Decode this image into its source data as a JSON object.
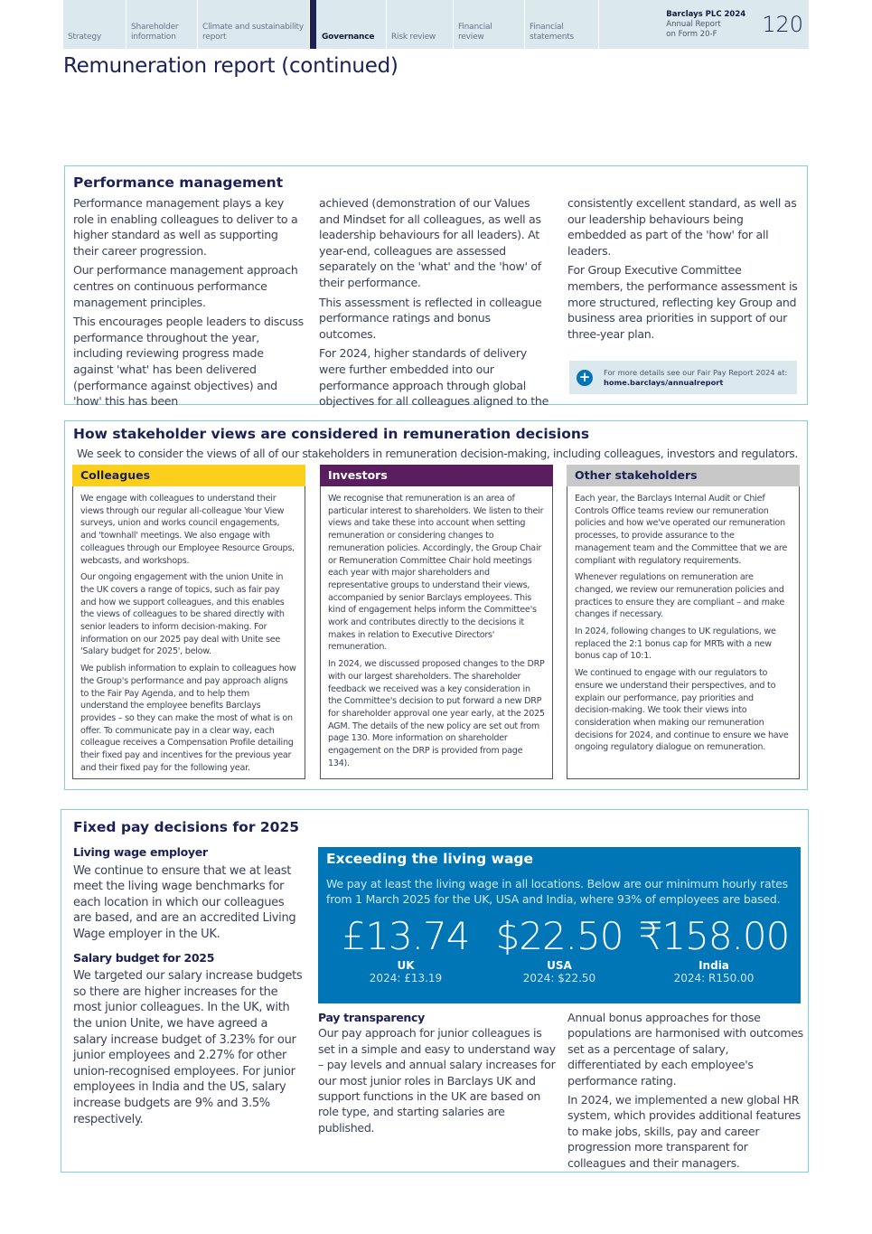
{
  "nav": {
    "tabs": [
      "Strategy",
      "Shareholder information",
      "Climate and sustainability report",
      "Governance",
      "Risk review",
      "Financial review",
      "Financial statements"
    ],
    "active": "Governance",
    "brand_line1": "Barclays PLC 2024",
    "brand_line2": "Annual Report",
    "brand_line3": "on Form 20-F",
    "page_number": "120"
  },
  "title": "Remuneration report (continued)",
  "performance": {
    "heading": "Performance management",
    "col1": [
      "Performance management plays a key role in enabling colleagues to deliver to a higher standard as well as supporting their career progression.",
      "Our performance management approach centres on continuous performance management principles.",
      "This encourages people leaders to discuss performance throughout the year, including reviewing progress made against 'what' has been delivered (performance against objectives) and 'how' this has been"
    ],
    "col2": [
      "achieved (demonstration of our Values and Mindset for all colleagues, as well as leadership behaviours for all leaders). At year-end, colleagues are assessed separately on the 'what' and the 'how' of their performance.",
      "This assessment is reflected in colleague performance ratings and bonus outcomes.",
      "For 2024, higher standards of delivery were further embedded into our performance approach through global objectives for all colleagues aligned to the"
    ],
    "col3": [
      "consistently excellent standard, as well as our leadership behaviours being embedded as part of the 'how' for all leaders.",
      "For Group Executive Committee members, the performance assessment is more structured, reflecting key Group and business area priorities in support of our three-year plan."
    ],
    "callout_text": "For more details see our Fair Pay Report 2024 at:",
    "callout_link": "home.barclays/annualreport"
  },
  "stakeholders": {
    "heading": "How stakeholder views are considered in remuneration decisions",
    "intro": "We seek to consider the views of all of our stakeholders in remuneration decision-making, including colleagues, investors and regulators.",
    "columns": [
      {
        "title": "Colleagues",
        "color": "#fccf1d",
        "paragraphs": [
          "We engage with colleagues to understand their views through our regular all-colleague Your View surveys, union and works council engagements, and 'townhall' meetings. We also engage with colleagues through our Employee Resource Groups, webcasts, and workshops.",
          "Our ongoing engagement with the union Unite in the UK covers a range of topics, such as fair pay and how we support colleagues, and this enables the views of colleagues to be shared directly with senior leaders to inform decision-making. For information on our 2025 pay deal with Unite see 'Salary budget for 2025', below.",
          "We publish information to explain to colleagues how the Group's performance and pay approach aligns to the Fair Pay Agenda, and to help them understand the employee benefits Barclays provides – so they can make the most of what is on offer. To communicate pay in a clear way, each colleague receives a Compensation Profile detailing their fixed pay and incentives for the previous year and their fixed pay for the following year."
        ]
      },
      {
        "title": "Investors",
        "color": "#5a1e5f",
        "paragraphs": [
          "We recognise that remuneration is an area of particular interest to shareholders. We listen to their views and take these into account when setting remuneration or considering changes to remuneration policies. Accordingly, the Group Chair or Remuneration Committee Chair hold meetings each year with major shareholders and representative groups to understand their views, accompanied by senior Barclays employees. This kind of engagement helps inform the Committee's work and contributes directly to the decisions it makes in relation to Executive Directors' remuneration.",
          "In 2024, we discussed proposed changes to the DRP with our largest shareholders. The shareholder feedback we received was a key consideration in the Committee's decision to put forward a new DRP for shareholder approval one year early, at the 2025 AGM. The details of the new policy are set out from page 130. More information on shareholder engagement on the DRP is provided from page 134)."
        ]
      },
      {
        "title": "Other stakeholders",
        "color": "#c8c8c8",
        "paragraphs": [
          "Each year, the Barclays Internal Audit or Chief Controls Office teams review our remuneration policies and how we've operated our remuneration processes, to provide assurance to the management team and the Committee that we are compliant with regulatory requirements.",
          "Whenever regulations on remuneration are changed, we review our remuneration policies and practices to ensure they are compliant – and make changes if necessary.",
          "In 2024, following changes to UK regulations, we replaced the 2:1 bonus cap for MRTs with a new bonus cap of 10:1.",
          "We continued to engage with our regulators to ensure we understand their perspectives, and to explain our performance, pay priorities and decision-making. We took their views into consideration when making our remuneration decisions for 2024, and continue to ensure we have ongoing regulatory dialogue on remuneration."
        ]
      }
    ]
  },
  "fixed_pay": {
    "heading": "Fixed pay decisions for 2025",
    "living_wage_heading": "Living wage employer",
    "living_wage_text": "We continue to ensure that we at least meet the living wage benchmarks for each location in which our colleagues are based, and are an accredited Living Wage employer in the UK.",
    "salary_heading": "Salary budget for 2025",
    "salary_text": "We targeted our salary increase budgets so there are higher increases for the most junior colleagues. In the UK, with the union Unite, we have agreed a salary increase budget of 3.23% for our junior employees and 2.27% for other union-recognised employees. For junior employees in India and the US, salary increase budgets are 9% and 3.5% respectively.",
    "living_wage_box": {
      "heading": "Exceeding the living wage",
      "description": "We pay at least the living wage in all locations. Below are our minimum hourly rates from 1 March 2025 for the UK, USA and India, where 93% of employees are based.",
      "color": "#0076b6",
      "rates": [
        {
          "value": "£13.74",
          "country": "UK",
          "prior": "2024: £13.19"
        },
        {
          "value": "$22.50",
          "country": "USA",
          "prior": "2024: $22.50"
        },
        {
          "value": "₹158.00",
          "country": "India",
          "prior": "2024: R150.00"
        }
      ]
    },
    "transparency_heading": "Pay transparency",
    "transparency_text": "Our pay approach for junior colleagues is set in a simple and easy to understand way – pay levels and annual salary increases for our most junior roles in Barclays UK and support functions in the UK are based on role type, and starting salaries are published.",
    "right_col": [
      "Annual bonus approaches for those populations are harmonised with outcomes set as a percentage of salary, differentiated by each employee's performance rating.",
      "In 2024, we implemented a new global HR system, which provides additional features to make jobs, skills, pay and career progression more transparent for colleagues and their managers."
    ]
  }
}
